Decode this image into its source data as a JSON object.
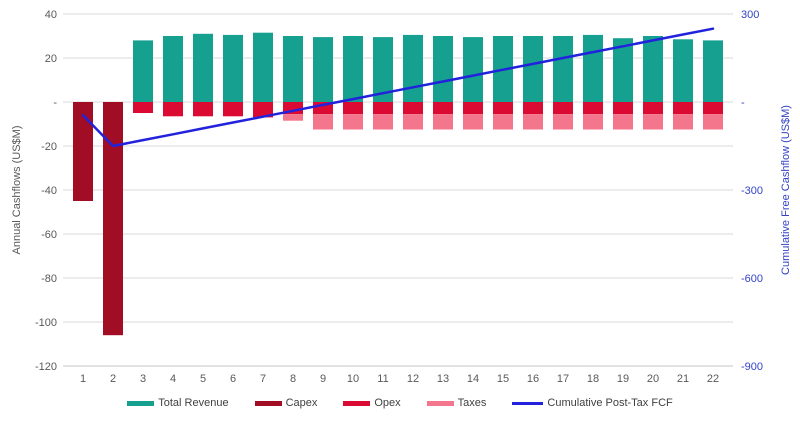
{
  "page": {
    "background": "#FFFFFF"
  },
  "chart_data": {
    "type": "bar",
    "subtype": "combo-stacked-bar-and-line",
    "categories": [
      1,
      2,
      3,
      4,
      5,
      6,
      7,
      8,
      9,
      10,
      11,
      12,
      13,
      14,
      15,
      16,
      17,
      18,
      19,
      20,
      21,
      22
    ],
    "left_axis": {
      "title": "Annual Cashflows (US$M)",
      "range": [
        -120,
        40
      ],
      "tick_interval": 20,
      "ticks": [
        {
          "value": 40,
          "label": "40"
        },
        {
          "value": 20,
          "label": "20"
        },
        {
          "value": 0,
          "label": "-"
        },
        {
          "value": -20,
          "label": "-20"
        },
        {
          "value": -40,
          "label": "-40"
        },
        {
          "value": -60,
          "label": "-60"
        },
        {
          "value": -80,
          "label": "-80"
        },
        {
          "value": -100,
          "label": "-100"
        },
        {
          "value": -120,
          "label": "-120"
        }
      ],
      "text_color": "#595959"
    },
    "right_axis": {
      "title": "Cumulative Free Cashflow (US$M)",
      "range": [
        -900,
        300
      ],
      "tick_interval": 300,
      "ticks": [
        {
          "value": 300,
          "label": "300"
        },
        {
          "value": 0,
          "label": "-"
        },
        {
          "value": -300,
          "label": "-300"
        },
        {
          "value": -600,
          "label": "-600"
        },
        {
          "value": -900,
          "label": "-900"
        }
      ],
      "text_color": "#3343C6"
    },
    "grid": {
      "show": true,
      "color": "#D8D8D8",
      "bottom_line_color": "#C4C4C4"
    },
    "legend_position": "bottom",
    "series": [
      {
        "name": "Total Revenue",
        "kind": "bar",
        "axis": "left",
        "color": "#16A08F",
        "values": [
          null,
          null,
          28,
          30,
          31,
          30.5,
          31.5,
          30,
          29.5,
          30,
          29.5,
          30.5,
          30,
          29.5,
          30,
          30,
          30,
          30.5,
          29,
          30,
          28.5,
          28
        ]
      },
      {
        "name": "Capex",
        "kind": "bar",
        "axis": "left",
        "color": "#A00D24",
        "values": [
          -45,
          -106,
          null,
          null,
          null,
          null,
          null,
          null,
          null,
          null,
          null,
          null,
          null,
          null,
          null,
          null,
          null,
          null,
          null,
          null,
          null,
          null
        ]
      },
      {
        "name": "Opex",
        "kind": "bar",
        "axis": "left",
        "color": "#DB0A32",
        "values": [
          null,
          null,
          -5,
          -6.5,
          -6.5,
          -6.5,
          -7,
          -5.5,
          -5.5,
          -5.5,
          -5.5,
          -5.5,
          -5.5,
          -5.5,
          -5.5,
          -5.5,
          -5.5,
          -5.5,
          -5.5,
          -5.5,
          -5.5,
          -5.5
        ]
      },
      {
        "name": "Taxes",
        "kind": "bar",
        "axis": "left",
        "color": "#F4768C",
        "values": [
          null,
          null,
          null,
          null,
          null,
          null,
          null,
          -3,
          -7,
          -7,
          -7,
          -7,
          -7,
          -7,
          -7,
          -7,
          -7,
          -7,
          -7,
          -7,
          -7,
          -7
        ]
      },
      {
        "name": "Cumulative Post-Tax FCF",
        "kind": "line",
        "axis": "right",
        "color": "#2222DD",
        "values": [
          -45,
          -150,
          -130,
          -110,
          -90,
          -70,
          -50,
          -30,
          -10,
          10,
          30,
          50,
          70,
          90,
          110,
          130,
          150,
          170,
          190,
          210,
          230,
          250
        ]
      }
    ]
  }
}
